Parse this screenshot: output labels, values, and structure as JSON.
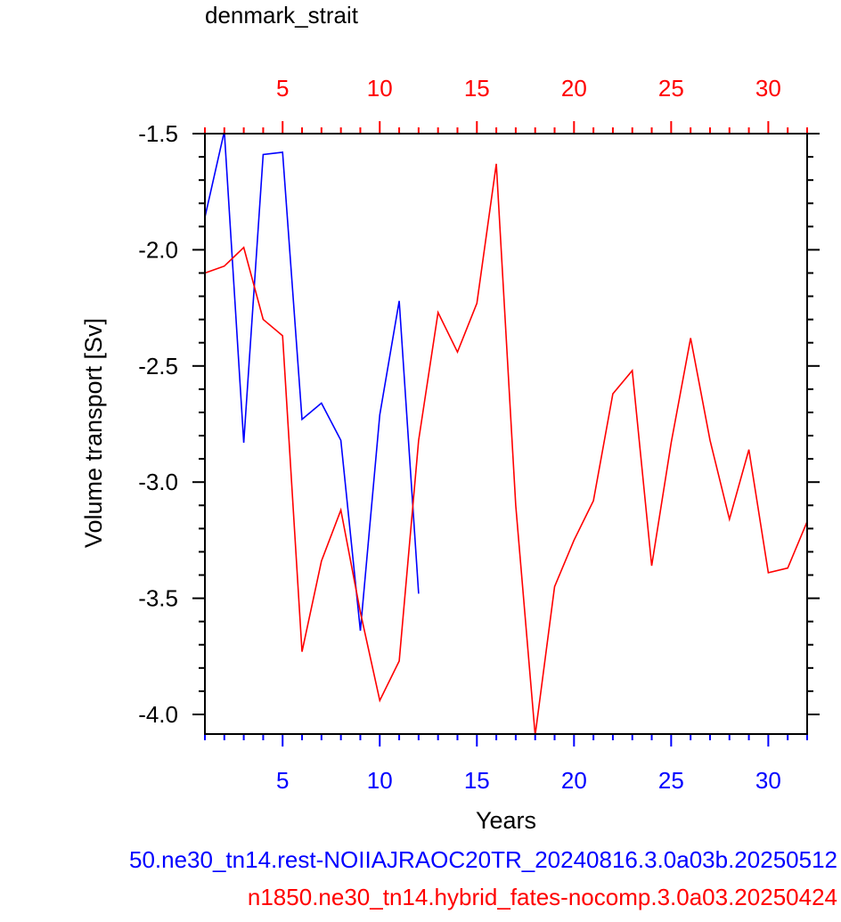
{
  "title": "denmark_strait",
  "captions": {
    "blue": "50.ne30_tn14.rest-NOIIAJRAOC20TR_20240816.3.0a03b.20250512",
    "red": "n1850.ne30_tn14.hybrid_fates-nocomp.3.0a03.20250424"
  },
  "colors": {
    "blue": "#0000ff",
    "red": "#ff0000",
    "axis": "#000000"
  },
  "chart_data": {
    "type": "line",
    "title": "denmark_strait",
    "xlabel": "Years",
    "ylabel": "Volume transport [Sv]",
    "xlim": [
      1,
      32
    ],
    "ylim": [
      -4.1,
      -1.5
    ],
    "x_ticks": [
      5,
      10,
      15,
      20,
      25,
      30
    ],
    "top_x_ticks": [
      5,
      10,
      15,
      20,
      25,
      30
    ],
    "y_ticks": [
      -1.5,
      -2.0,
      -2.5,
      -3.0,
      -3.5,
      -4.0
    ],
    "y_tick_labels": [
      "-1.5",
      "-2.0",
      "-2.5",
      "-3.0",
      "-3.5",
      "-4.0"
    ],
    "grid": false,
    "series": [
      {
        "name": "50.ne30_tn14.rest-NOIIAJRAOC20TR_20240816.3.0a03b.20250512",
        "color": "#0000ff",
        "x": [
          1,
          2,
          3,
          4,
          5,
          6,
          7,
          8,
          9,
          10,
          11,
          12
        ],
        "values": [
          -1.86,
          -1.49,
          -2.83,
          -1.59,
          -1.58,
          -2.73,
          -2.66,
          -2.82,
          -3.64,
          -2.71,
          -2.22,
          -3.48
        ]
      },
      {
        "name": "n1850.ne30_tn14.hybrid_fates-nocomp.3.0a03.20250424",
        "color": "#ff0000",
        "x": [
          1,
          2,
          3,
          4,
          5,
          6,
          7,
          8,
          9,
          10,
          11,
          12,
          13,
          14,
          15,
          16,
          17,
          18,
          19,
          20,
          21,
          22,
          23,
          24,
          25,
          26,
          27,
          28,
          29,
          30,
          31,
          32
        ],
        "values": [
          -2.1,
          -2.07,
          -1.99,
          -2.3,
          -2.37,
          -3.73,
          -3.34,
          -3.12,
          -3.56,
          -3.94,
          -3.77,
          -2.82,
          -2.27,
          -2.44,
          -2.23,
          -1.63,
          -3.1,
          -4.09,
          -3.45,
          -3.25,
          -3.08,
          -2.62,
          -2.52,
          -3.36,
          -2.83,
          -2.38,
          -2.82,
          -3.16,
          -2.86,
          -3.39,
          -3.37,
          -3.17
        ]
      }
    ]
  }
}
